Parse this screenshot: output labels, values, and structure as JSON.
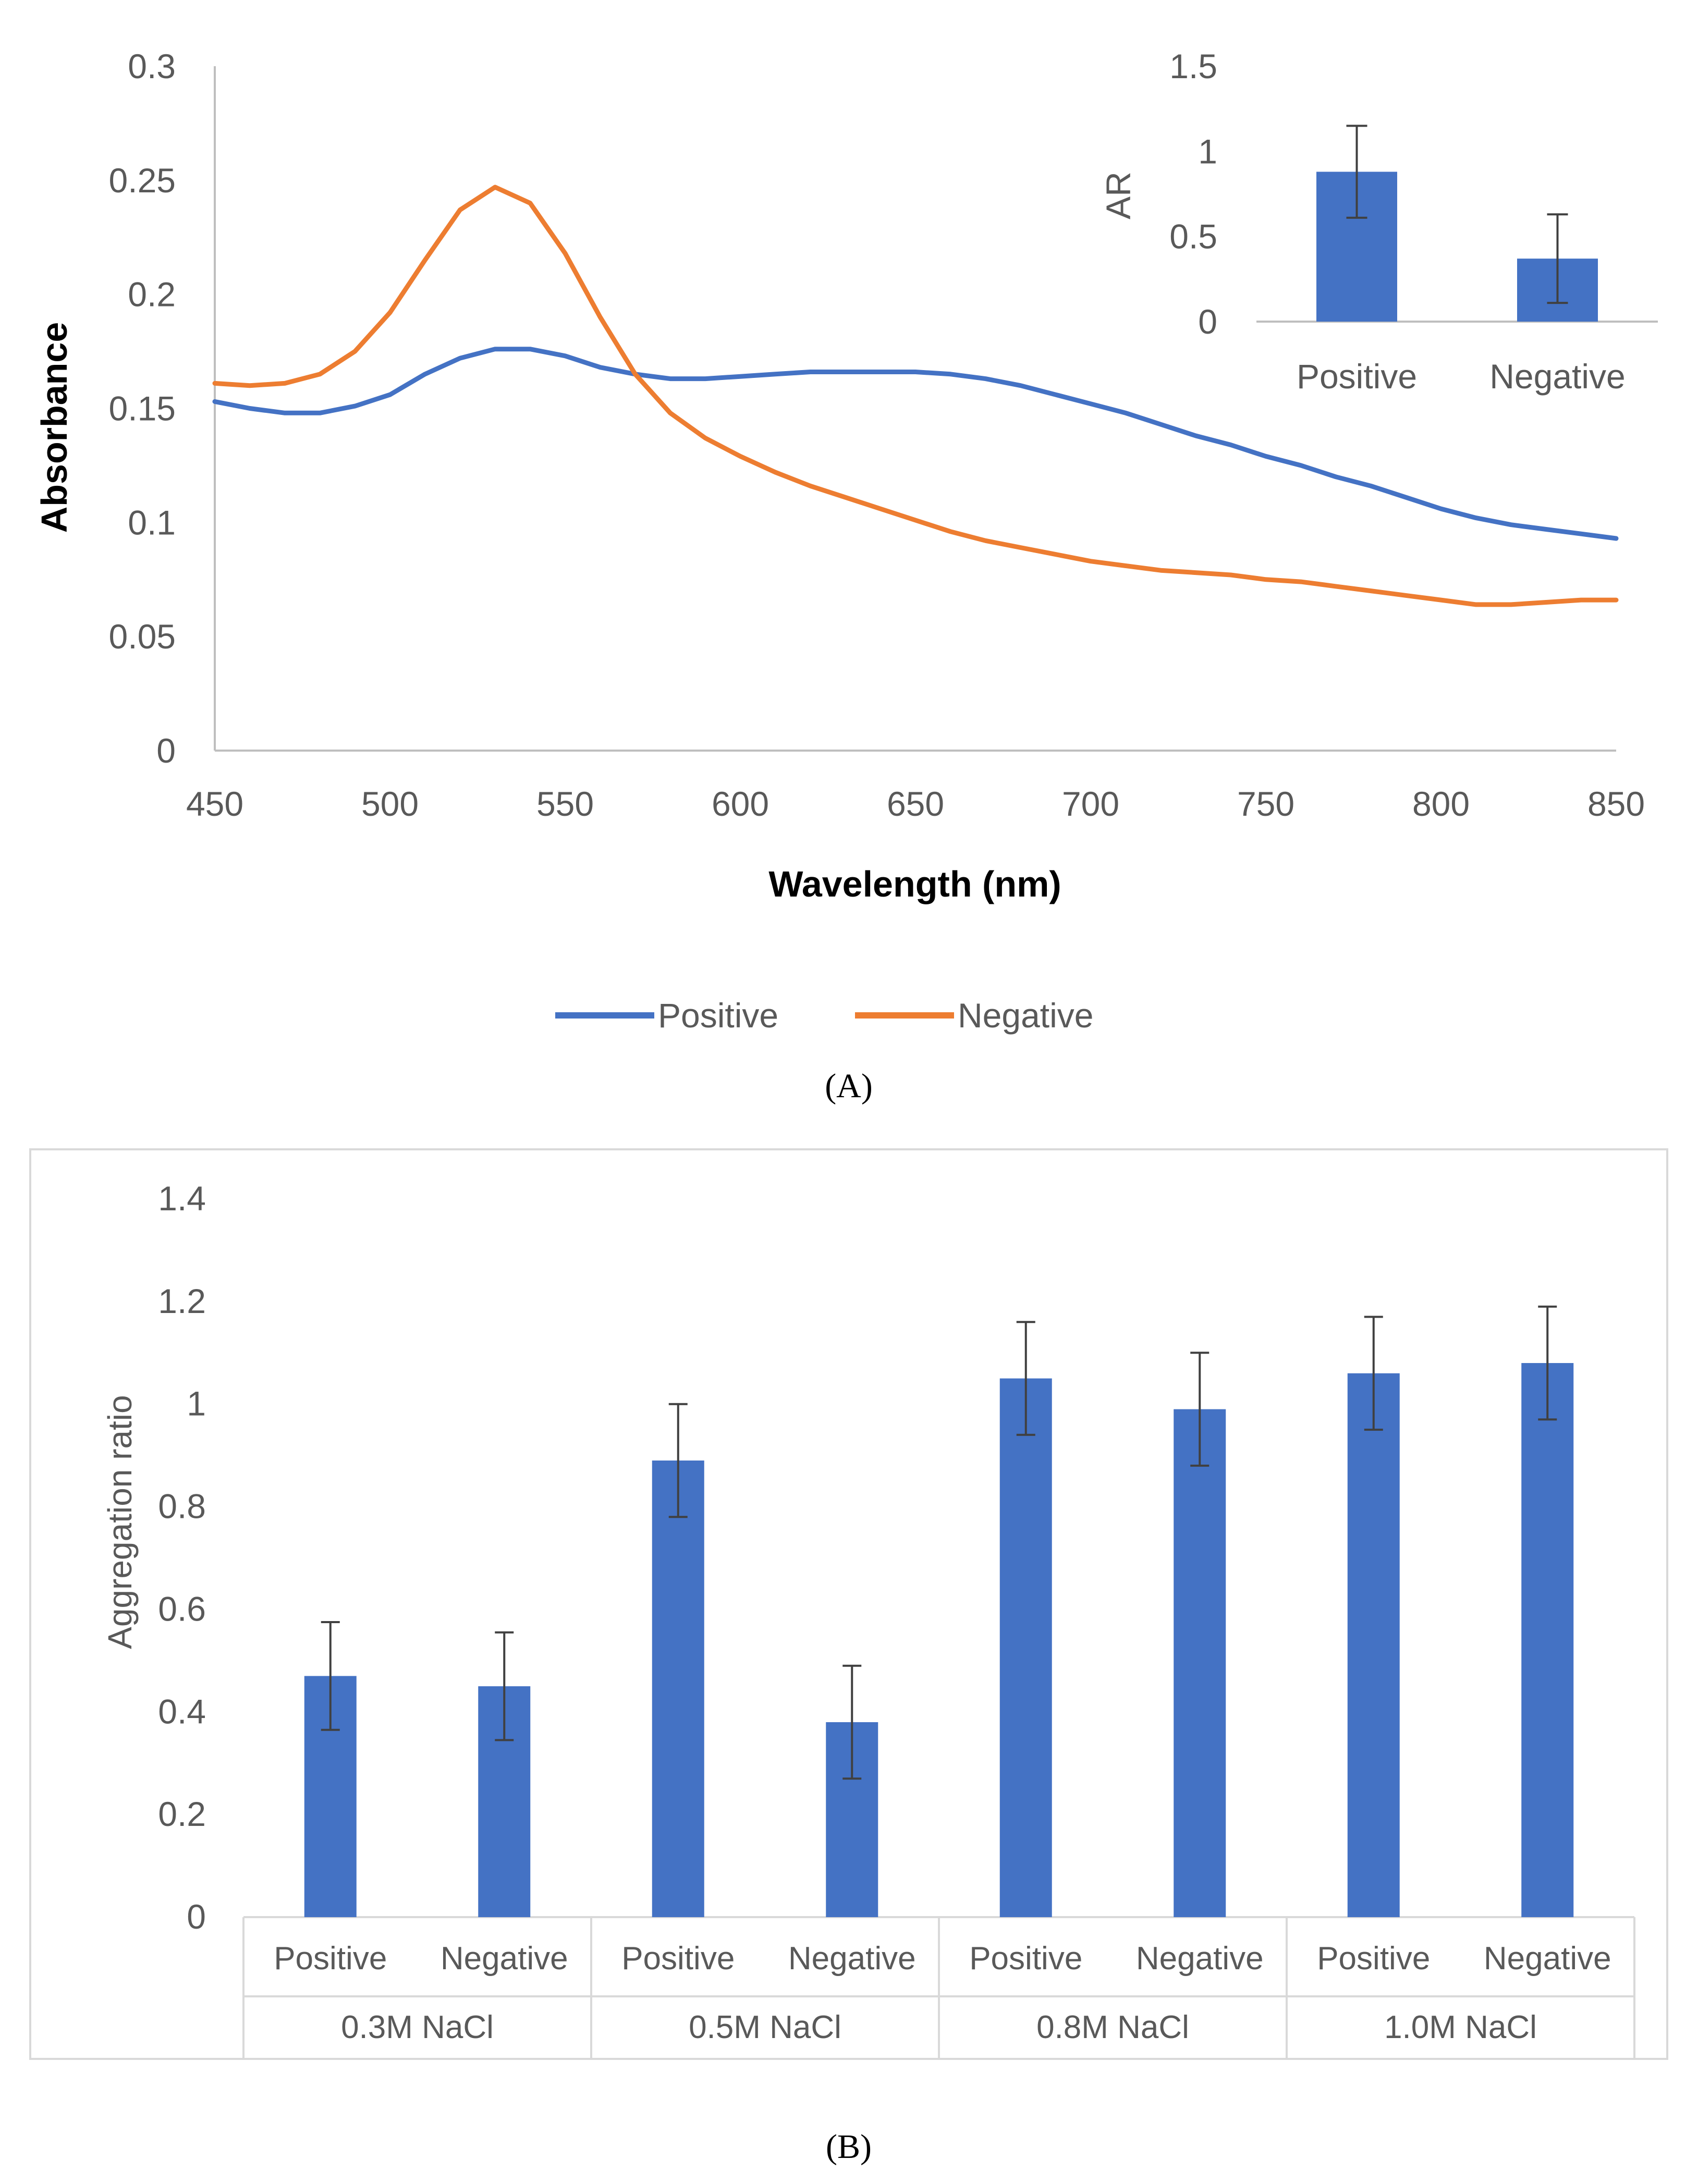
{
  "chart_data": [
    {
      "id": "A",
      "type": "line",
      "caption": "(A)",
      "xlabel": "Wavelength (nm)",
      "ylabel": "Absorbance",
      "xlim": [
        450,
        850
      ],
      "ylim": [
        0,
        0.3
      ],
      "xticks": [
        "450",
        "500",
        "550",
        "600",
        "650",
        "700",
        "750",
        "800",
        "850"
      ],
      "yticks": [
        "0",
        "0.05",
        "0.1",
        "0.15",
        "0.2",
        "0.25",
        "0.3"
      ],
      "grid": false,
      "legend_position": "bottom",
      "series": [
        {
          "name": "Positive",
          "color": "#4472C4",
          "x": [
            450,
            460,
            470,
            480,
            490,
            500,
            510,
            520,
            530,
            540,
            550,
            560,
            570,
            580,
            590,
            600,
            610,
            620,
            630,
            640,
            650,
            660,
            670,
            680,
            690,
            700,
            710,
            720,
            730,
            740,
            750,
            760,
            770,
            780,
            790,
            800,
            810,
            820,
            830,
            840,
            850
          ],
          "y": [
            0.153,
            0.15,
            0.148,
            0.148,
            0.151,
            0.156,
            0.165,
            0.172,
            0.176,
            0.176,
            0.173,
            0.168,
            0.165,
            0.163,
            0.163,
            0.164,
            0.165,
            0.166,
            0.166,
            0.166,
            0.166,
            0.165,
            0.163,
            0.16,
            0.156,
            0.152,
            0.148,
            0.143,
            0.138,
            0.134,
            0.129,
            0.125,
            0.12,
            0.116,
            0.111,
            0.106,
            0.102,
            0.099,
            0.097,
            0.095,
            0.093
          ]
        },
        {
          "name": "Negative",
          "color": "#ED7D31",
          "x": [
            450,
            460,
            470,
            480,
            490,
            500,
            510,
            520,
            530,
            540,
            550,
            560,
            570,
            580,
            590,
            600,
            610,
            620,
            630,
            640,
            650,
            660,
            670,
            680,
            690,
            700,
            710,
            720,
            730,
            740,
            750,
            760,
            770,
            780,
            790,
            800,
            810,
            820,
            830,
            840,
            850
          ],
          "y": [
            0.161,
            0.16,
            0.161,
            0.165,
            0.175,
            0.192,
            0.215,
            0.237,
            0.247,
            0.24,
            0.218,
            0.19,
            0.165,
            0.148,
            0.137,
            0.129,
            0.122,
            0.116,
            0.111,
            0.106,
            0.101,
            0.096,
            0.092,
            0.089,
            0.086,
            0.083,
            0.081,
            0.079,
            0.078,
            0.077,
            0.075,
            0.074,
            0.072,
            0.07,
            0.068,
            0.066,
            0.064,
            0.064,
            0.065,
            0.066,
            0.066
          ]
        }
      ]
    },
    {
      "id": "A-inset",
      "type": "bar",
      "categories": [
        "Positive",
        "Negative"
      ],
      "values": [
        0.88,
        0.37
      ],
      "errors": [
        0.27,
        0.26
      ],
      "ylabel": "AR",
      "ylim": [
        0,
        1.5
      ],
      "yticks": [
        "0",
        "0.5",
        "1",
        "1.5"
      ],
      "color": "#4472C4",
      "placement": "top-right inset"
    },
    {
      "id": "B",
      "type": "bar",
      "caption": "(B)",
      "ylabel": "Aggregation ratio",
      "ylim": [
        0,
        1.4
      ],
      "yticks": [
        "0",
        "0.2",
        "0.4",
        "0.6",
        "0.8",
        "1",
        "1.2",
        "1.4"
      ],
      "color": "#4472C4",
      "groups": [
        "0.3M NaCl",
        "0.5M NaCl",
        "0.8M NaCl",
        "1.0M NaCl"
      ],
      "categories": [
        "Positive",
        "Negative",
        "Positive",
        "Negative",
        "Positive",
        "Negative",
        "Positive",
        "Negative"
      ],
      "values": [
        0.47,
        0.45,
        0.89,
        0.38,
        1.05,
        0.99,
        1.06,
        1.08
      ],
      "errors": [
        0.105,
        0.105,
        0.11,
        0.11,
        0.11,
        0.11,
        0.11,
        0.11
      ]
    }
  ]
}
